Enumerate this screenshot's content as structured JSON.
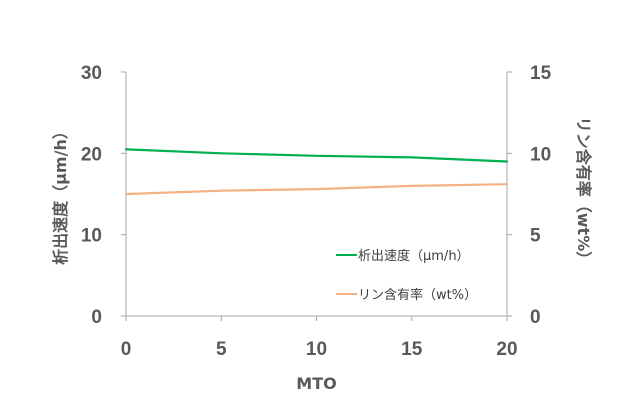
{
  "chart_data": {
    "type": "line",
    "xlabel": "MTO",
    "ylabel_left": "析出速度（μm/h）",
    "ylabel_right": "リン含有率（wt%）",
    "xlim": [
      0,
      20
    ],
    "ylim_left": [
      0,
      30
    ],
    "ylim_right": [
      0,
      15
    ],
    "x_ticks": [
      "0",
      "5",
      "10",
      "15",
      "20"
    ],
    "y_left_ticks": [
      "0",
      "10",
      "20",
      "30"
    ],
    "y_right_ticks": [
      "0",
      "5",
      "10",
      "15"
    ],
    "grid": false,
    "legend_position": "inside-bottom-right",
    "series": [
      {
        "name": "析出速度（μm/h）",
        "axis": "left",
        "color": "#00B050",
        "x": [
          0,
          5,
          10,
          15,
          20
        ],
        "values": [
          20.5,
          20.0,
          19.7,
          19.5,
          19.0
        ]
      },
      {
        "name": "リン含有率（wt%）",
        "axis": "right",
        "color": "#F4B183",
        "x": [
          0,
          5,
          10,
          15,
          20
        ],
        "values": [
          7.5,
          7.7,
          7.8,
          8.0,
          8.1
        ]
      }
    ]
  }
}
